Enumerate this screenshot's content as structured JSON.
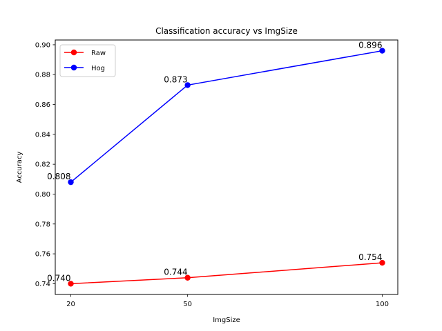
{
  "chart_data": {
    "type": "line",
    "title": "Classification accuracy vs ImgSize",
    "xlabel": "ImgSize",
    "ylabel": "Accuracy",
    "x": [
      20,
      50,
      100
    ],
    "x_ticks": [
      20,
      50,
      100
    ],
    "xlim": [
      16,
      104
    ],
    "ylim": [
      0.7328,
      0.9032
    ],
    "y_ticks": [
      "0.74",
      "0.76",
      "0.78",
      "0.80",
      "0.82",
      "0.84",
      "0.86",
      "0.88",
      "0.90"
    ],
    "grid": false,
    "legend_position": "top-left",
    "series": [
      {
        "name": "Raw",
        "color": "#ff0000",
        "values": [
          0.74,
          0.744,
          0.754
        ],
        "labels": [
          "0.740",
          "0.744",
          "0.754"
        ]
      },
      {
        "name": "Hog",
        "color": "#0000ff",
        "values": [
          0.808,
          0.873,
          0.896
        ],
        "labels": [
          "0.808",
          "0.873",
          "0.896"
        ]
      }
    ]
  }
}
